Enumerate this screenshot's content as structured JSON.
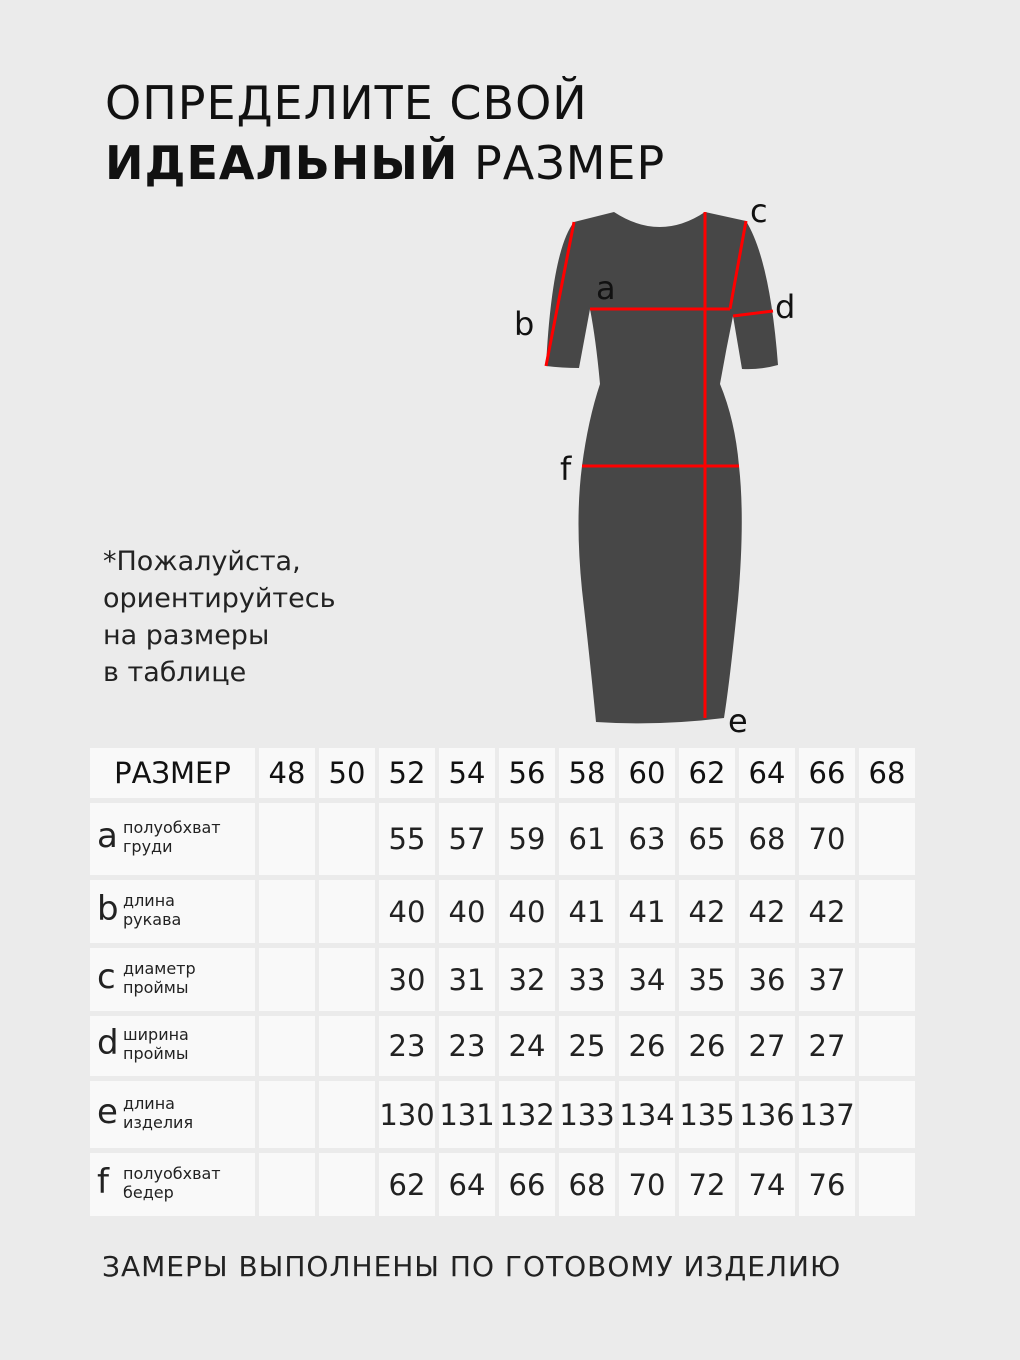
{
  "title": {
    "line1": "ОПРЕДЕЛИТЕ СВОЙ",
    "line2_bold": "ИДЕАЛЬНЫЙ",
    "line2_rest": "РАЗМЕР"
  },
  "note": [
    "*Пожалуйста,",
    "ориентируйтесь",
    "на размеры",
    "в таблице"
  ],
  "diagram": {
    "labels": {
      "a": "a",
      "b": "b",
      "c": "c",
      "d": "d",
      "e": "e",
      "f": "f"
    },
    "dress_color": "#474747",
    "line_color": "#ff0000"
  },
  "table": {
    "header": "РАЗМЕР",
    "sizes": [
      "48",
      "50",
      "52",
      "54",
      "56",
      "58",
      "60",
      "62",
      "64",
      "66",
      "68"
    ],
    "rows": [
      {
        "letter": "a",
        "desc1": "полуобхват",
        "desc2": "груди",
        "values": [
          "",
          "",
          "55",
          "57",
          "59",
          "61",
          "63",
          "65",
          "68",
          "70",
          ""
        ]
      },
      {
        "letter": "b",
        "desc1": "длина",
        "desc2": "рукава",
        "values": [
          "",
          "",
          "40",
          "40",
          "40",
          "41",
          "41",
          "42",
          "42",
          "42",
          ""
        ]
      },
      {
        "letter": "c",
        "desc1": "диаметр",
        "desc2": "проймы",
        "values": [
          "",
          "",
          "30",
          "31",
          "32",
          "33",
          "34",
          "35",
          "36",
          "37",
          ""
        ]
      },
      {
        "letter": "d",
        "desc1": "ширина",
        "desc2": "проймы",
        "values": [
          "",
          "",
          "23",
          "23",
          "24",
          "25",
          "26",
          "26",
          "27",
          "27",
          ""
        ]
      },
      {
        "letter": "e",
        "desc1": "длина",
        "desc2": "изделия",
        "values": [
          "",
          "",
          "130",
          "131",
          "132",
          "133",
          "134",
          "135",
          "136",
          "137",
          ""
        ]
      },
      {
        "letter": "f",
        "desc1": "полуобхват",
        "desc2": "бедер",
        "values": [
          "",
          "",
          "62",
          "64",
          "66",
          "68",
          "70",
          "72",
          "74",
          "76",
          ""
        ]
      }
    ]
  },
  "footer": "ЗАМЕРЫ ВЫПОЛНЕНЫ ПО ГОТОВОМУ ИЗДЕЛИЮ"
}
